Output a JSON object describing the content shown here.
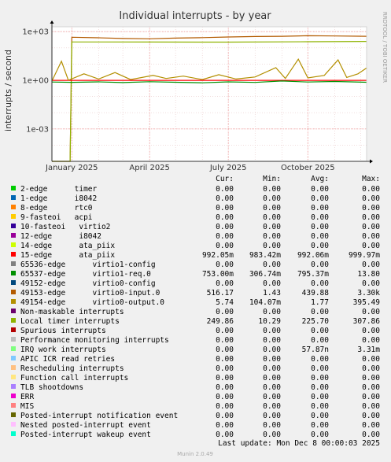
{
  "chart_data": {
    "type": "line",
    "title": "Individual interrupts - by year",
    "ylabel": "interrupts / second",
    "side_label": "RRDTOOL / TOBI OETIKER",
    "y_scale": "log",
    "ylim": [
      1e-05,
      2000
    ],
    "y_ticks": [
      {
        "value": 1000,
        "label": "1e+03"
      },
      {
        "value": 1,
        "label": "1e+00"
      },
      {
        "value": 0.001,
        "label": "1e-03"
      }
    ],
    "x_range": [
      "2024-12-09",
      "2025-12-08"
    ],
    "x_ticks": [
      {
        "date": "2025-01-01",
        "label": "January 2025"
      },
      {
        "date": "2025-04-01",
        "label": "April 2025"
      },
      {
        "date": "2025-07-01",
        "label": "July 2025"
      },
      {
        "date": "2025-10-01",
        "label": "October 2025"
      }
    ],
    "grid": true,
    "columns": [
      "Cur:",
      "Min:",
      "Avg:",
      "Max:"
    ],
    "series": [
      {
        "name": "2-edge      timer",
        "color": "#00cc00",
        "cur": "0.00",
        "min": "0.00",
        "avg": "0.00",
        "max": "0.00"
      },
      {
        "name": "1-edge      i8042",
        "color": "#0066b3",
        "cur": "0.00",
        "min": "0.00",
        "avg": "0.00",
        "max": "0.00"
      },
      {
        "name": "8-edge      rtc0",
        "color": "#ff8000",
        "cur": "0.00",
        "min": "0.00",
        "avg": "0.00",
        "max": "0.00"
      },
      {
        "name": "9-fasteoi   acpi",
        "color": "#ffcc00",
        "cur": "0.00",
        "min": "0.00",
        "avg": "0.00",
        "max": "0.00"
      },
      {
        "name": "10-fasteoi   virtio2",
        "color": "#330099",
        "cur": "0.00",
        "min": "0.00",
        "avg": "0.00",
        "max": "0.00"
      },
      {
        "name": "12-edge      i8042",
        "color": "#990099",
        "cur": "0.00",
        "min": "0.00",
        "avg": "0.00",
        "max": "0.00"
      },
      {
        "name": "14-edge      ata_piix",
        "color": "#ccff00",
        "cur": "0.00",
        "min": "0.00",
        "avg": "0.00",
        "max": "0.00"
      },
      {
        "name": "15-edge      ata_piix",
        "color": "#ff0000",
        "cur": "992.05m",
        "min": "983.42m",
        "avg": "992.06m",
        "max": "999.97m"
      },
      {
        "name": "65536-edge      virtio1-config",
        "color": "#808080",
        "cur": "0.00",
        "min": "0.00",
        "avg": "0.00",
        "max": "0.00"
      },
      {
        "name": "65537-edge      virtio1-req.0",
        "color": "#008f00",
        "cur": "753.00m",
        "min": "306.74m",
        "avg": "795.37m",
        "max": "13.80"
      },
      {
        "name": "49152-edge      virtio0-config",
        "color": "#00487d",
        "cur": "0.00",
        "min": "0.00",
        "avg": "0.00",
        "max": "0.00"
      },
      {
        "name": "49153-edge      virtio0-input.0",
        "color": "#b35a00",
        "cur": "516.17",
        "min": "1.43",
        "avg": "439.88",
        "max": "3.30k"
      },
      {
        "name": "49154-edge      virtio0-output.0",
        "color": "#b38f00",
        "cur": "5.74",
        "min": "104.07m",
        "avg": "1.77",
        "max": "395.49"
      },
      {
        "name": "Non-maskable interrupts",
        "color": "#6b006b",
        "cur": "0.00",
        "min": "0.00",
        "avg": "0.00",
        "max": "0.00"
      },
      {
        "name": "Local timer interrupts",
        "color": "#8fb300",
        "cur": "249.86",
        "min": "10.29",
        "avg": "225.70",
        "max": "307.86"
      },
      {
        "name": "Spurious interrupts",
        "color": "#b30000",
        "cur": "0.00",
        "min": "0.00",
        "avg": "0.00",
        "max": "0.00"
      },
      {
        "name": "Performance monitoring interrupts",
        "color": "#bebebe",
        "cur": "0.00",
        "min": "0.00",
        "avg": "0.00",
        "max": "0.00"
      },
      {
        "name": "IRQ work interrupts",
        "color": "#80ff80",
        "cur": "0.00",
        "min": "0.00",
        "avg": "57.87n",
        "max": "3.31m"
      },
      {
        "name": "APIC ICR read retries",
        "color": "#80c9ff",
        "cur": "0.00",
        "min": "0.00",
        "avg": "0.00",
        "max": "0.00"
      },
      {
        "name": "Rescheduling interrupts",
        "color": "#ffc080",
        "cur": "0.00",
        "min": "0.00",
        "avg": "0.00",
        "max": "0.00"
      },
      {
        "name": "Function call interrupts",
        "color": "#ffe680",
        "cur": "0.00",
        "min": "0.00",
        "avg": "0.00",
        "max": "0.00"
      },
      {
        "name": "TLB shootdowns",
        "color": "#aa80ff",
        "cur": "0.00",
        "min": "0.00",
        "avg": "0.00",
        "max": "0.00"
      },
      {
        "name": "ERR",
        "color": "#ee00cc",
        "cur": "0.00",
        "min": "0.00",
        "avg": "0.00",
        "max": "0.00"
      },
      {
        "name": "MIS",
        "color": "#ff8080",
        "cur": "0.00",
        "min": "0.00",
        "avg": "0.00",
        "max": "0.00"
      },
      {
        "name": "Posted-interrupt notification event",
        "color": "#666600",
        "cur": "0.00",
        "min": "0.00",
        "avg": "0.00",
        "max": "0.00"
      },
      {
        "name": "Nested posted-interrupt event",
        "color": "#ffbfff",
        "cur": "0.00",
        "min": "0.00",
        "avg": "0.00",
        "max": "0.00"
      },
      {
        "name": "Posted-interrupt wakeup event",
        "color": "#00ffcc",
        "cur": "0.00",
        "min": "0.00",
        "avg": "0.00",
        "max": "0.00"
      }
    ],
    "lines": [
      {
        "series": "49153-edge      virtio0-input.0",
        "color": "#b35a00",
        "points": [
          [
            "2024-12-09",
            1e-05
          ],
          [
            "2024-12-30",
            1e-05
          ],
          [
            "2025-01-01",
            450
          ],
          [
            "2025-02-01",
            420
          ],
          [
            "2025-03-01",
            380
          ],
          [
            "2025-04-01",
            360
          ],
          [
            "2025-05-01",
            400
          ],
          [
            "2025-06-01",
            430
          ],
          [
            "2025-07-01",
            470
          ],
          [
            "2025-08-01",
            500
          ],
          [
            "2025-09-01",
            520
          ],
          [
            "2025-10-01",
            560
          ],
          [
            "2025-11-01",
            540
          ],
          [
            "2025-12-08",
            516.17
          ]
        ]
      },
      {
        "series": "Local timer interrupts",
        "color": "#8fb300",
        "points": [
          [
            "2024-12-09",
            1e-05
          ],
          [
            "2024-12-30",
            1e-05
          ],
          [
            "2025-01-01",
            230
          ],
          [
            "2025-04-01",
            228
          ],
          [
            "2025-07-01",
            226
          ],
          [
            "2025-10-01",
            238
          ],
          [
            "2025-12-08",
            249.86
          ]
        ]
      },
      {
        "series": "15-edge      ata_piix",
        "color": "#ff0000",
        "points": [
          [
            "2024-12-09",
            0.99
          ],
          [
            "2025-03-01",
            0.99
          ],
          [
            "2025-06-01",
            0.992
          ],
          [
            "2025-09-01",
            0.99
          ],
          [
            "2025-12-08",
            0.992
          ]
        ]
      },
      {
        "series": "65537-edge      virtio1-req.0",
        "color": "#008f00",
        "points": [
          [
            "2024-12-09",
            0.78
          ],
          [
            "2025-01-01",
            0.75
          ],
          [
            "2025-02-01",
            0.8
          ],
          [
            "2025-03-01",
            0.72
          ],
          [
            "2025-04-01",
            0.82
          ],
          [
            "2025-05-01",
            0.76
          ],
          [
            "2025-06-01",
            0.7
          ],
          [
            "2025-07-01",
            0.8
          ],
          [
            "2025-08-01",
            0.74
          ],
          [
            "2025-09-01",
            0.9
          ],
          [
            "2025-10-01",
            0.78
          ],
          [
            "2025-11-01",
            0.85
          ],
          [
            "2025-12-08",
            0.753
          ]
        ]
      },
      {
        "series": "49154-edge      virtio0-output.0",
        "color": "#b38f00",
        "points": [
          [
            "2024-12-09",
            0.9
          ],
          [
            "2024-12-20",
            15
          ],
          [
            "2024-12-28",
            1.0
          ],
          [
            "2025-01-15",
            2.5
          ],
          [
            "2025-02-01",
            1.2
          ],
          [
            "2025-02-20",
            3.0
          ],
          [
            "2025-03-10",
            1.1
          ],
          [
            "2025-04-05",
            2.0
          ],
          [
            "2025-04-20",
            1.3
          ],
          [
            "2025-05-10",
            1.8
          ],
          [
            "2025-06-01",
            1.1
          ],
          [
            "2025-06-20",
            2.2
          ],
          [
            "2025-07-10",
            1.2
          ],
          [
            "2025-08-01",
            1.6
          ],
          [
            "2025-08-25",
            6
          ],
          [
            "2025-09-05",
            1.3
          ],
          [
            "2025-09-20",
            20
          ],
          [
            "2025-10-01",
            1.4
          ],
          [
            "2025-10-20",
            2.0
          ],
          [
            "2025-11-05",
            18
          ],
          [
            "2025-11-15",
            1.5
          ],
          [
            "2025-11-28",
            2.5
          ],
          [
            "2025-12-08",
            5.74
          ]
        ]
      }
    ]
  },
  "footer": {
    "last_update": "Last update: Mon Dec  8 00:00:03 2025",
    "munin": "Munin 2.0.49"
  }
}
